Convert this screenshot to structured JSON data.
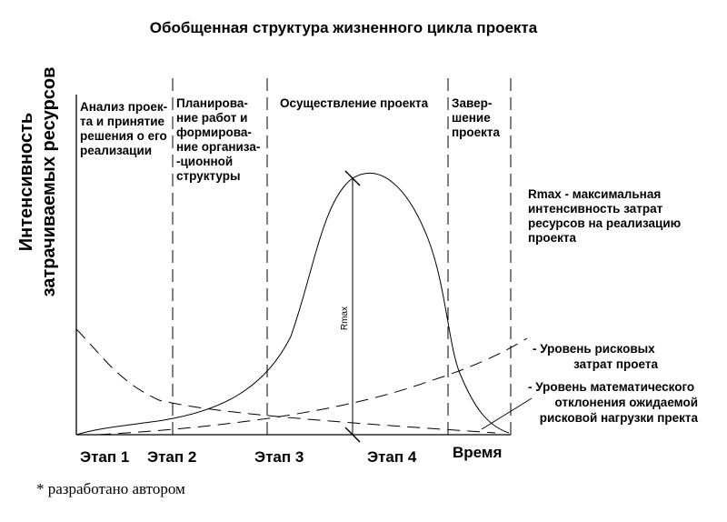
{
  "title": "Обобщенная структура жизненного цикла проекта",
  "y_axis_label": [
    "Интенсивность",
    "затрачиваемых ресурсов"
  ],
  "phases": [
    [
      "Анализ проек-",
      "та и принятие",
      "решения о его",
      "реализации"
    ],
    [
      "Планирова-",
      "ние работ и",
      "формирова-",
      "ние организа-",
      "-ционной",
      "структуры"
    ],
    [
      "Осуществление проекта"
    ],
    [
      "Завер-",
      "шение",
      "проекта"
    ]
  ],
  "stages": [
    "Этап 1",
    "Этап 2",
    "Этап 3",
    "Этап 4"
  ],
  "x_axis_label": "Время",
  "rmax_label": "Rmax",
  "rmax_note": [
    "Rmax - максимальная",
    "интенсивность затрат",
    "ресурсов на реализацию",
    "проекта"
  ],
  "legend_risk": [
    "- Уровень рисковых",
    "затрат проета"
  ],
  "legend_deviation": [
    "- Уровень математического",
    "отклонения ожидаемой",
    "рисковой нагрузки пректа"
  ],
  "footnote": "* разработано автором"
}
